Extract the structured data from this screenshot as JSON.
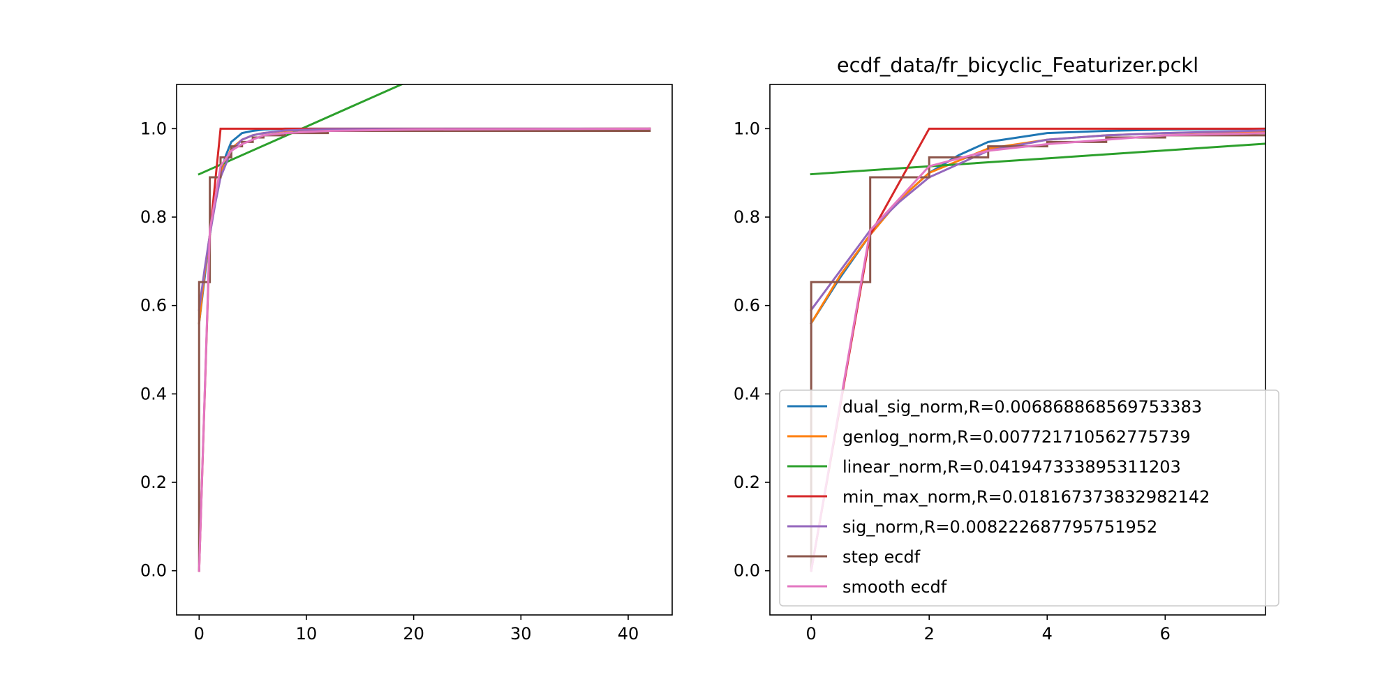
{
  "chart_data": [
    {
      "type": "line",
      "title": "",
      "xlabel": "",
      "ylabel": "",
      "xlim": [
        -2.1,
        44.1
      ],
      "ylim": [
        -0.1,
        1.1
      ],
      "xticks": [
        0,
        10,
        20,
        30,
        40
      ],
      "xtick_labels": [
        "0",
        "10",
        "20",
        "30",
        "40"
      ],
      "yticks": [
        0.0,
        0.2,
        0.4,
        0.6,
        0.8,
        1.0
      ],
      "ytick_labels": [
        "0.0",
        "0.2",
        "0.4",
        "0.6",
        "0.8",
        "1.0"
      ],
      "grid": false,
      "legend": "none",
      "series": [
        {
          "name": "dual_sig_norm,R=0.006868868569753383",
          "color": "#1f77b4",
          "step": false,
          "points": [
            [
              0,
              0.56
            ],
            [
              0.5,
              0.66
            ],
            [
              1,
              0.76
            ],
            [
              1.5,
              0.84
            ],
            [
              2,
              0.9
            ],
            [
              2.5,
              0.94
            ],
            [
              3,
              0.97
            ],
            [
              3.5,
              0.98
            ],
            [
              4,
              0.99
            ],
            [
              5,
              0.995
            ],
            [
              6,
              0.998
            ],
            [
              8,
              1.0
            ],
            [
              42,
              1.0
            ]
          ]
        },
        {
          "name": "genlog_norm,R=0.007721710562775739",
          "color": "#ff7f0e",
          "step": false,
          "points": [
            [
              0,
              0.56
            ],
            [
              0.5,
              0.67
            ],
            [
              1,
              0.76
            ],
            [
              1.5,
              0.84
            ],
            [
              2,
              0.9
            ],
            [
              3,
              0.955
            ],
            [
              4,
              0.975
            ],
            [
              5,
              0.985
            ],
            [
              6,
              0.99
            ],
            [
              8,
              0.995
            ],
            [
              12,
              0.999
            ],
            [
              42,
              1.0
            ]
          ]
        },
        {
          "name": "linear_norm,R=0.041947333895311203",
          "color": "#2ca02c",
          "step": false,
          "points": [
            [
              0,
              0.897
            ],
            [
              23.5,
              1.15
            ]
          ]
        },
        {
          "name": "min_max_norm,R=0.018167373832982142",
          "color": "#d62728",
          "step": false,
          "points": [
            [
              0,
              0.0
            ],
            [
              1,
              0.76
            ],
            [
              2,
              1.0
            ],
            [
              42,
              1.0
            ]
          ]
        },
        {
          "name": "sig_norm,R=0.008222687795751952",
          "color": "#9467bd",
          "step": false,
          "points": [
            [
              0,
              0.59
            ],
            [
              0.5,
              0.68
            ],
            [
              1,
              0.76
            ],
            [
              1.5,
              0.83
            ],
            [
              2,
              0.89
            ],
            [
              3,
              0.95
            ],
            [
              4,
              0.975
            ],
            [
              5,
              0.985
            ],
            [
              6,
              0.99
            ],
            [
              8,
              0.996
            ],
            [
              12,
              0.999
            ],
            [
              42,
              1.0
            ]
          ]
        },
        {
          "name": "step ecdf",
          "color": "#8c564b",
          "step": true,
          "points": [
            [
              0,
              0.0
            ],
            [
              0,
              0.653
            ],
            [
              1,
              0.653
            ],
            [
              1,
              0.89
            ],
            [
              2,
              0.89
            ],
            [
              2,
              0.935
            ],
            [
              3,
              0.935
            ],
            [
              3,
              0.96
            ],
            [
              4,
              0.96
            ],
            [
              4,
              0.97
            ],
            [
              5,
              0.97
            ],
            [
              5,
              0.98
            ],
            [
              6,
              0.98
            ],
            [
              6,
              0.985
            ],
            [
              8,
              0.985
            ],
            [
              8,
              0.99
            ],
            [
              12,
              0.99
            ],
            [
              12,
              0.995
            ],
            [
              42,
              0.995
            ],
            [
              42,
              1.0
            ]
          ]
        },
        {
          "name": "smooth ecdf",
          "color": "#e377c2",
          "step": false,
          "points": [
            [
              0,
              0.0
            ],
            [
              1,
              0.77
            ],
            [
              2,
              0.915
            ],
            [
              3,
              0.95
            ],
            [
              4,
              0.965
            ],
            [
              5,
              0.975
            ],
            [
              6,
              0.985
            ],
            [
              8,
              0.99
            ],
            [
              12,
              0.995
            ],
            [
              20,
              0.998
            ],
            [
              42,
              1.0
            ]
          ]
        }
      ]
    },
    {
      "type": "line",
      "title": "ecdf_data/fr_bicyclic_Featurizer.pckl",
      "xlabel": "",
      "ylabel": "",
      "xlim": [
        -0.7,
        7.7
      ],
      "ylim": [
        -0.1,
        1.1
      ],
      "xticks": [
        0,
        2,
        4,
        6
      ],
      "xtick_labels": [
        "0",
        "2",
        "4",
        "6"
      ],
      "yticks": [
        0.0,
        0.2,
        0.4,
        0.6,
        0.8,
        1.0
      ],
      "ytick_labels": [
        "0.0",
        "0.2",
        "0.4",
        "0.6",
        "0.8",
        "1.0"
      ],
      "grid": false,
      "legend": "lower-right",
      "series": [
        {
          "name": "dual_sig_norm,R=0.006868868569753383",
          "color": "#1f77b4",
          "step": false,
          "points": [
            [
              0,
              0.56
            ],
            [
              0.5,
              0.665
            ],
            [
              1,
              0.76
            ],
            [
              1.5,
              0.84
            ],
            [
              2,
              0.9
            ],
            [
              2.5,
              0.94
            ],
            [
              3,
              0.97
            ],
            [
              3.5,
              0.98
            ],
            [
              4,
              0.99
            ],
            [
              5,
              0.995
            ],
            [
              6,
              0.998
            ],
            [
              7.7,
              1.0
            ]
          ]
        },
        {
          "name": "genlog_norm,R=0.007721710562775739",
          "color": "#ff7f0e",
          "step": false,
          "points": [
            [
              0,
              0.56
            ],
            [
              0.5,
              0.67
            ],
            [
              1,
              0.76
            ],
            [
              1.5,
              0.84
            ],
            [
              2,
              0.9
            ],
            [
              3,
              0.955
            ],
            [
              4,
              0.975
            ],
            [
              5,
              0.985
            ],
            [
              6,
              0.99
            ],
            [
              7.7,
              0.994
            ]
          ]
        },
        {
          "name": "linear_norm,R=0.041947333895311203",
          "color": "#2ca02c",
          "step": false,
          "points": [
            [
              0,
              0.897
            ],
            [
              7.7,
              0.966
            ]
          ]
        },
        {
          "name": "min_max_norm,R=0.018167373832982142",
          "color": "#d62728",
          "step": false,
          "points": [
            [
              0,
              0.0
            ],
            [
              1,
              0.76
            ],
            [
              2,
              1.0
            ],
            [
              7.7,
              1.0
            ]
          ]
        },
        {
          "name": "sig_norm,R=0.008222687795751952",
          "color": "#9467bd",
          "step": false,
          "points": [
            [
              0,
              0.59
            ],
            [
              0.5,
              0.68
            ],
            [
              1,
              0.77
            ],
            [
              1.5,
              0.835
            ],
            [
              2,
              0.89
            ],
            [
              3,
              0.95
            ],
            [
              4,
              0.975
            ],
            [
              5,
              0.985
            ],
            [
              6,
              0.99
            ],
            [
              7.7,
              0.996
            ]
          ]
        },
        {
          "name": "step ecdf",
          "color": "#8c564b",
          "step": true,
          "points": [
            [
              0,
              0.0
            ],
            [
              0,
              0.653
            ],
            [
              1,
              0.653
            ],
            [
              1,
              0.89
            ],
            [
              2,
              0.89
            ],
            [
              2,
              0.935
            ],
            [
              3,
              0.935
            ],
            [
              3,
              0.96
            ],
            [
              4,
              0.96
            ],
            [
              4,
              0.97
            ],
            [
              5,
              0.97
            ],
            [
              5,
              0.98
            ],
            [
              6,
              0.98
            ],
            [
              6,
              0.985
            ],
            [
              7.7,
              0.985
            ]
          ]
        },
        {
          "name": "smooth ecdf",
          "color": "#e377c2",
          "step": false,
          "points": [
            [
              0,
              0.0
            ],
            [
              1,
              0.77
            ],
            [
              2,
              0.915
            ],
            [
              3,
              0.95
            ],
            [
              4,
              0.965
            ],
            [
              5,
              0.975
            ],
            [
              6,
              0.985
            ],
            [
              7.7,
              0.99
            ]
          ]
        }
      ]
    }
  ]
}
